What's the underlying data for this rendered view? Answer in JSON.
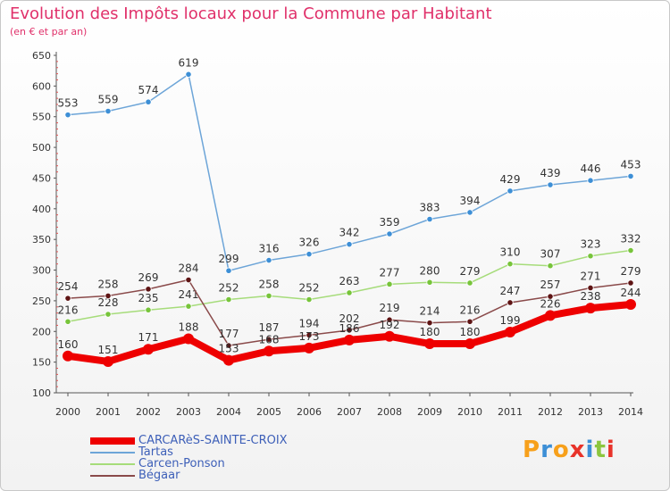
{
  "title": "Evolution des Impôts locaux pour la Commune par Habitant",
  "subtitle": "(en € et par an)",
  "logo": {
    "text": "Proxiti",
    "colors": [
      "#f7a01b",
      "#3d8fd6",
      "#f7a01b",
      "#e8332a",
      "#3d8fd6",
      "#8cc63f",
      "#e8332a"
    ]
  },
  "chart_data": {
    "type": "line",
    "x": [
      "2000",
      "2001",
      "2002",
      "2003",
      "2004",
      "2005",
      "2006",
      "2007",
      "2008",
      "2009",
      "2010",
      "2011",
      "2012",
      "2013",
      "2014"
    ],
    "ylim": [
      100,
      650
    ],
    "yticks": [
      100,
      150,
      200,
      250,
      300,
      350,
      400,
      450,
      500,
      550,
      600,
      650
    ],
    "grid": false,
    "legend_position": "bottom-left",
    "series": [
      {
        "name": "CARCARèS-SAINTE-CROIX",
        "color": "#ee0000",
        "values": [
          160,
          151,
          171,
          188,
          153,
          168,
          173,
          186,
          192,
          180,
          180,
          199,
          226,
          238,
          244
        ]
      },
      {
        "name": "Tartas",
        "color": "#6da5d8",
        "marker": "#3d8fd6",
        "values": [
          553,
          559,
          574,
          619,
          299,
          316,
          326,
          342,
          359,
          383,
          394,
          429,
          439,
          446,
          453
        ]
      },
      {
        "name": "Carcen-Ponson",
        "color": "#a6dc7a",
        "marker": "#77c43a",
        "values": [
          216,
          228,
          235,
          241,
          252,
          258,
          252,
          263,
          277,
          280,
          279,
          310,
          307,
          323,
          332
        ]
      },
      {
        "name": "Bégaar",
        "color": "#8a4a4a",
        "marker": "#5e1414",
        "values": [
          254,
          258,
          269,
          284,
          177,
          187,
          194,
          202,
          219,
          214,
          216,
          247,
          257,
          271,
          279
        ]
      }
    ]
  }
}
